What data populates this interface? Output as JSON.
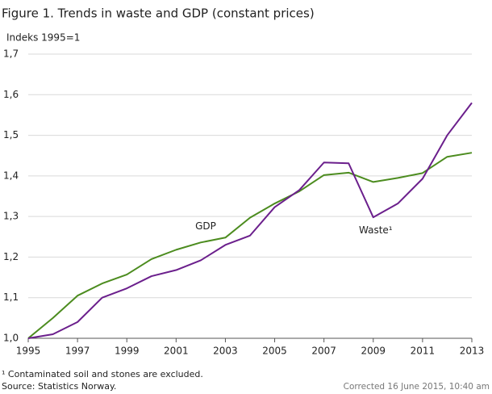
{
  "chart_data": {
    "type": "line",
    "title": "Figure 1. Trends in waste and GDP (constant prices)",
    "y_label": "Indeks 1995=1",
    "x": [
      1995,
      1996,
      1997,
      1998,
      1999,
      2000,
      2001,
      2002,
      2003,
      2004,
      2005,
      2006,
      2007,
      2008,
      2009,
      2010,
      2011,
      2012,
      2013
    ],
    "series": [
      {
        "name": "GDP",
        "color": "#4c8c1f",
        "values": [
          1.0,
          1.05,
          1.105,
          1.135,
          1.157,
          1.195,
          1.218,
          1.236,
          1.248,
          1.297,
          1.332,
          1.362,
          1.402,
          1.408,
          1.385,
          1.395,
          1.407,
          1.447,
          1.457
        ]
      },
      {
        "name": "Waste¹",
        "color": "#6b1f8c",
        "values": [
          1.0,
          1.01,
          1.04,
          1.1,
          1.123,
          1.153,
          1.168,
          1.192,
          1.23,
          1.253,
          1.323,
          1.365,
          1.433,
          1.431,
          1.298,
          1.332,
          1.393,
          1.5,
          1.58
        ]
      }
    ],
    "xlim": [
      1995,
      2013
    ],
    "xticks": [
      1995,
      1997,
      1999,
      2001,
      2003,
      2005,
      2007,
      2009,
      2011,
      2013
    ],
    "ylim": [
      1.0,
      1.7
    ],
    "yticks": [
      {
        "value": 1.0,
        "label": "1,0"
      },
      {
        "value": 1.1,
        "label": "1,1"
      },
      {
        "value": 1.2,
        "label": "1,2"
      },
      {
        "value": 1.3,
        "label": "1,3"
      },
      {
        "value": 1.4,
        "label": "1,4"
      },
      {
        "value": 1.5,
        "label": "1,5"
      },
      {
        "value": 1.6,
        "label": "1,6"
      },
      {
        "value": 1.7,
        "label": "1,7"
      }
    ],
    "grid": true,
    "footnote": "¹ Contaminated soil and stones are excluded.",
    "source": "Source: Statistics Norway.",
    "corrected": "Corrected 16 June 2015, 10:40 am"
  }
}
